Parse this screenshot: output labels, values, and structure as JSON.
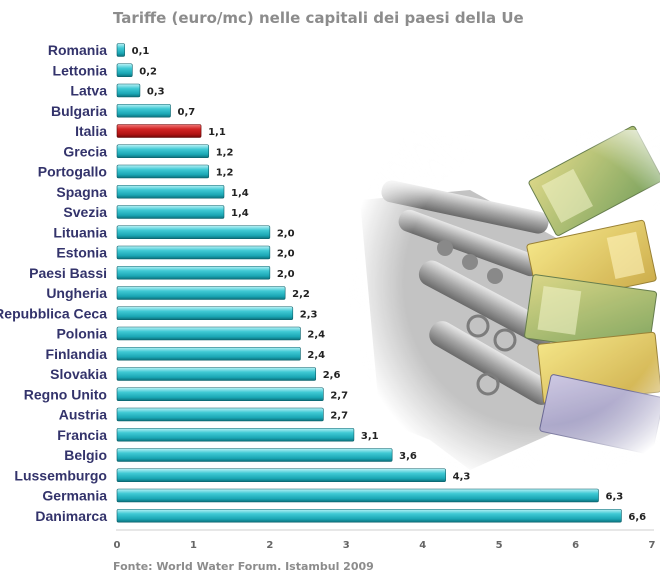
{
  "chart_data": {
    "type": "bar",
    "orientation": "horizontal",
    "title": "Tariffe (euro/mc) nelle capitali dei paesi della Ue",
    "source": "Fonte: World Water Forum. Istambul 2009",
    "categories": [
      "Romania",
      "Lettonia",
      "Latva",
      "Bulgaria",
      "Italia",
      "Grecia",
      "Portogallo",
      "Spagna",
      "Svezia",
      "Lituania",
      "Estonia",
      "Paesi Bassi",
      "Ungheria",
      "Repubblica Ceca",
      "Polonia",
      "Finlandia",
      "Slovakia",
      "Regno Unito",
      "Austria",
      "Francia",
      "Belgio",
      "Lussemburgo",
      "Germania",
      "Danimarca"
    ],
    "values": [
      0.1,
      0.2,
      0.3,
      0.7,
      1.1,
      1.2,
      1.2,
      1.4,
      1.4,
      2.0,
      2.0,
      2.0,
      2.2,
      2.3,
      2.4,
      2.4,
      2.6,
      2.7,
      2.7,
      3.1,
      3.6,
      4.3,
      6.3,
      6.6
    ],
    "value_labels": [
      "0,1",
      "0,2",
      "0,3",
      "0,7",
      "1,1",
      "1,2",
      "1,2",
      "1,4",
      "1,4",
      "2,0",
      "2,0",
      "2,0",
      "2,2",
      "2,3",
      "2,4",
      "2,4",
      "2,6",
      "2,7",
      "2,7",
      "3,1",
      "3,6",
      "4,3",
      "6,3",
      "6,6"
    ],
    "xlim": [
      0,
      7
    ],
    "xticks": [
      "0",
      "1",
      "2",
      "3",
      "4",
      "5",
      "6",
      "7"
    ],
    "highlight_category": "Italia",
    "colors": {
      "bar": "#2bbcc8",
      "highlight": "#c01818",
      "title": "#8c8c8c",
      "category": "#33336b"
    }
  }
}
